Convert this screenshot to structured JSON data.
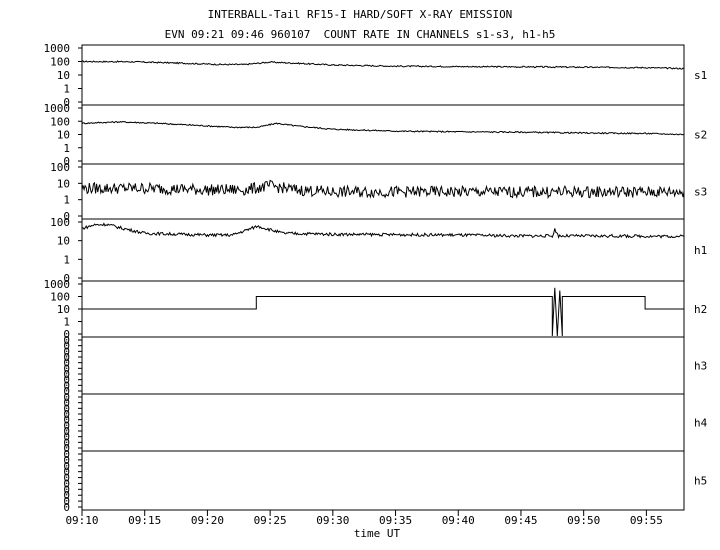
{
  "title_line1": "INTERBALL-Tail RF15-I HARD/SOFT X-RAY EMISSION",
  "title_line2": "EVN 09:21 09:46 960107  COUNT RATE IN CHANNELS s1-s3, h1-h5",
  "chart_data": {
    "type": "line",
    "xlabel": "time UT",
    "x_ticks": [
      "09:10",
      "09:15",
      "09:20",
      "09:25",
      "09:30",
      "09:35",
      "09:40",
      "09:45",
      "09:50",
      "09:55"
    ],
    "xlim": [
      "09:10",
      "09:58"
    ],
    "y_scale": "log",
    "grid": false,
    "panels": [
      {
        "name": "s1",
        "tick_labels": [
          "1000",
          "100",
          "10",
          "1",
          "0"
        ],
        "series": [
          {
            "x": [
              "09:10",
              "09:14",
              "09:18",
              "09:21",
              "09:23",
              "09:25",
              "09:27",
              "09:30",
              "09:35",
              "09:40",
              "09:45",
              "09:50",
              "09:55",
              "09:58"
            ],
            "y": [
              100,
              95,
              75,
              60,
              60,
              90,
              75,
              55,
              45,
              42,
              40,
              38,
              35,
              30
            ]
          }
        ]
      },
      {
        "name": "s2",
        "tick_labels": [
          "1000",
          "100",
          "10",
          "1",
          "0"
        ],
        "series": [
          {
            "x": [
              "09:10",
              "09:13",
              "09:16",
              "09:19",
              "09:22",
              "09:24",
              "09:25.5",
              "09:27",
              "09:30",
              "09:35",
              "09:40",
              "09:45",
              "09:50",
              "09:55",
              "09:58"
            ],
            "y": [
              70,
              90,
              70,
              50,
              35,
              35,
              70,
              45,
              25,
              18,
              16,
              15,
              13,
              12,
              10
            ]
          }
        ]
      },
      {
        "name": "s3",
        "tick_labels": [
          "100",
          "10",
          "1",
          "0"
        ],
        "series": [
          {
            "x": [
              "09:10",
              "09:15",
              "09:20",
              "09:23",
              "09:25",
              "09:27",
              "09:30",
              "09:35",
              "09:40",
              "09:45",
              "09:50",
              "09:55",
              "09:58"
            ],
            "y": [
              5,
              5,
              4,
              4,
              7,
              4,
              3,
              3,
              3,
              3,
              3,
              3,
              3
            ]
          }
        ]
      },
      {
        "name": "h1",
        "tick_labels": [
          "100",
          "10",
          "1",
          "0"
        ],
        "series": [
          {
            "x": [
              "09:10",
              "09:11",
              "09:12",
              "09:13",
              "09:15",
              "09:20",
              "09:22",
              "09:24",
              "09:26",
              "09:30",
              "09:40",
              "09:45",
              "09:47.5",
              "09:47.7",
              "09:48",
              "09:50",
              "09:58"
            ],
            "y": [
              45,
              70,
              75,
              50,
              25,
              20,
              20,
              60,
              25,
              22,
              20,
              18,
              18,
              40,
              18,
              18,
              17
            ]
          }
        ]
      },
      {
        "name": "h2",
        "tick_labels": [
          "1000",
          "100",
          "10",
          "1",
          "0"
        ],
        "series": [
          {
            "x": [
              "09:10",
              "09:23.9",
              "09:23.9",
              "09:47.5",
              "09:47.5",
              "09:47.7",
              "09:47.9",
              "09:48.1",
              "09:48.3",
              "09:48.3",
              "09:54.9",
              "09:54.9",
              "09:58"
            ],
            "y": [
              10,
              10,
              100,
              100,
              0,
              500,
              0,
              300,
              0,
              100,
              100,
              10,
              10
            ]
          }
        ]
      },
      {
        "name": "h3",
        "tick_labels": [
          "0",
          "0",
          "0",
          "0",
          "0",
          "0",
          "0",
          "0",
          "0",
          "0"
        ],
        "series": []
      },
      {
        "name": "h4",
        "tick_labels": [
          "0",
          "0",
          "0",
          "0",
          "0",
          "0",
          "0",
          "0",
          "0",
          "0"
        ],
        "series": []
      },
      {
        "name": "h5",
        "tick_labels": [
          "0",
          "0",
          "0",
          "0",
          "0",
          "0",
          "0",
          "0",
          "0",
          "0"
        ],
        "series": []
      }
    ]
  }
}
